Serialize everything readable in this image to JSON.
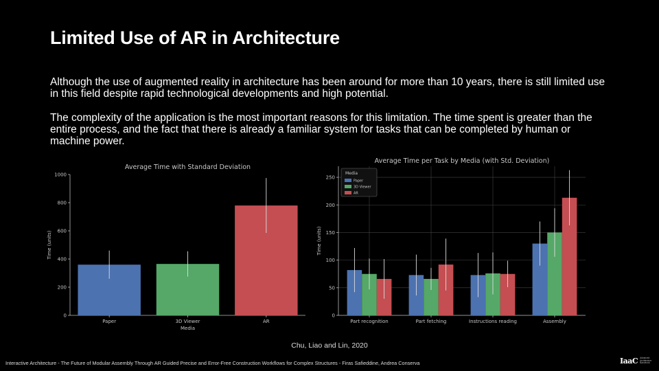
{
  "slide": {
    "title": "Limited Use of AR in Architecture",
    "paragraph1": "Although the use of augmented reality in architecture has been around for more than 10 years, there is still limited use in this field despite rapid technological developments and high potential.",
    "paragraph2": "The complexity of the application is the most important reasons for this limitation. The time spent is greater than the entire process, and the fact that there is already a familiar system for tasks that can be completed by human or machine power.",
    "citation": "Chu, Liao and Lin, 2020",
    "footer": "Interactive Architecture - The Future of Modular Assembly Through AR Guided Precise and Error-Free Construction Workflows for Complex Structures - Firas Safieddine, Andrea Conserva",
    "logo_mark": "IaaC",
    "logo_sub": "Advanced Architecture Barcelona"
  },
  "colors": {
    "paper": "#4c72b0",
    "viewer": "#55a868",
    "ar": "#c44e52",
    "background": "#000000"
  },
  "chart_data": [
    {
      "type": "bar",
      "title": "Average Time with Standard Deviation",
      "xlabel": "Media",
      "ylabel": "Time (units)",
      "categories": [
        "Paper",
        "3D Viewer",
        "AR"
      ],
      "values": [
        360,
        365,
        780
      ],
      "errors": [
        100,
        90,
        195
      ],
      "ylim": [
        0,
        1000
      ],
      "yticks": [
        0,
        200,
        400,
        600,
        800,
        1000
      ],
      "grid": false
    },
    {
      "type": "bar",
      "title": "Average Time per Task by Media (with Std. Deviation)",
      "xlabel": "",
      "ylabel": "Time (units)",
      "categories": [
        "Part recognition",
        "Part fetching",
        "Instructions reading",
        "Assembly"
      ],
      "series": [
        {
          "name": "Paper",
          "values": [
            82,
            73,
            73,
            130
          ],
          "errors": [
            40,
            37,
            40,
            40
          ]
        },
        {
          "name": "3D Viewer",
          "values": [
            75,
            66,
            76,
            150
          ],
          "errors": [
            28,
            20,
            38,
            44
          ]
        },
        {
          "name": "AR",
          "values": [
            66,
            92,
            75,
            213
          ],
          "errors": [
            36,
            47,
            24,
            50
          ]
        }
      ],
      "legend_title": "Media",
      "legend_position": "top-left",
      "ylim": [
        0,
        270
      ],
      "yticks": [
        0,
        50,
        100,
        150,
        200,
        250
      ],
      "grid": true
    }
  ]
}
